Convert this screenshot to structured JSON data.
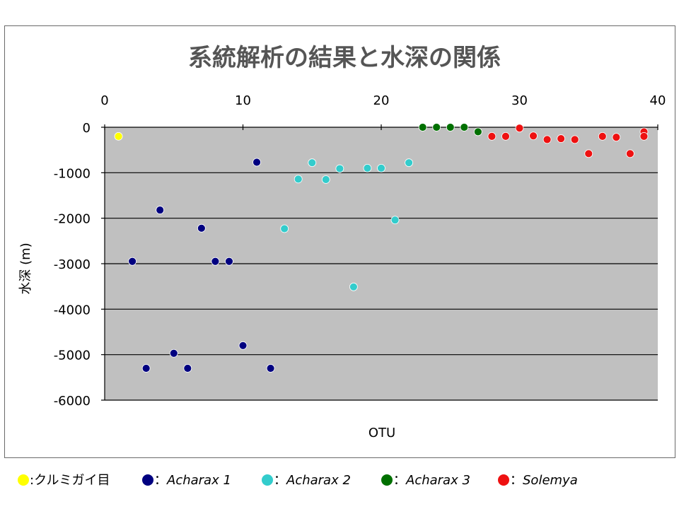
{
  "chart_data": {
    "type": "scatter",
    "title": "系統解析の結果と水深の関係",
    "xlabel": "OTU",
    "ylabel": "水深 (m)",
    "xlim": [
      0,
      40
    ],
    "ylim": [
      -6000,
      0
    ],
    "x_ticks": [
      0,
      10,
      20,
      30,
      40
    ],
    "y_ticks": [
      0,
      -1000,
      -2000,
      -3000,
      -4000,
      -5000,
      -6000
    ],
    "x_axis_position": "top",
    "grid": "horizontal",
    "plot_background": "#c0c0c0",
    "legend_position": "bottom",
    "series": [
      {
        "name": "クルミガイ目",
        "name_prefix": ":",
        "name_italic": false,
        "color": "#ffff00",
        "points": [
          [
            1,
            -200
          ]
        ]
      },
      {
        "name": "Acharax 1",
        "name_prefix": "：",
        "name_italic": true,
        "color": "#000080",
        "points": [
          [
            2,
            -2950
          ],
          [
            3,
            -5300
          ],
          [
            4,
            -1820
          ],
          [
            5,
            -4970
          ],
          [
            6,
            -5300
          ],
          [
            7,
            -2220
          ],
          [
            8,
            -2950
          ],
          [
            9,
            -2950
          ],
          [
            10,
            -4800
          ],
          [
            11,
            -770
          ],
          [
            12,
            -5300
          ]
        ]
      },
      {
        "name": "Acharax 2",
        "name_prefix": "：",
        "name_italic": true,
        "color": "#33cccc",
        "points": [
          [
            13,
            -2230
          ],
          [
            14,
            -1140
          ],
          [
            15,
            -780
          ],
          [
            16,
            -1150
          ],
          [
            17,
            -910
          ],
          [
            18,
            -3510
          ],
          [
            19,
            -900
          ],
          [
            20,
            -900
          ],
          [
            21,
            -2040
          ],
          [
            22,
            -780
          ]
        ]
      },
      {
        "name": "Acharax 3",
        "name_prefix": "：",
        "name_italic": true,
        "color": "#007000",
        "points": [
          [
            23,
            0
          ],
          [
            24,
            0
          ],
          [
            25,
            0
          ],
          [
            26,
            0
          ],
          [
            27,
            -100
          ]
        ]
      },
      {
        "name": "Solemya",
        "name_prefix": "：",
        "name_italic": true,
        "color": "#ee1111",
        "points": [
          [
            28,
            -200
          ],
          [
            29,
            -200
          ],
          [
            30,
            -20
          ],
          [
            31,
            -190
          ],
          [
            32,
            -270
          ],
          [
            33,
            -250
          ],
          [
            34,
            -270
          ],
          [
            35,
            -580
          ],
          [
            36,
            -200
          ],
          [
            37,
            -220
          ],
          [
            38,
            -580
          ],
          [
            39,
            -100
          ],
          [
            39,
            -200
          ]
        ]
      }
    ]
  }
}
